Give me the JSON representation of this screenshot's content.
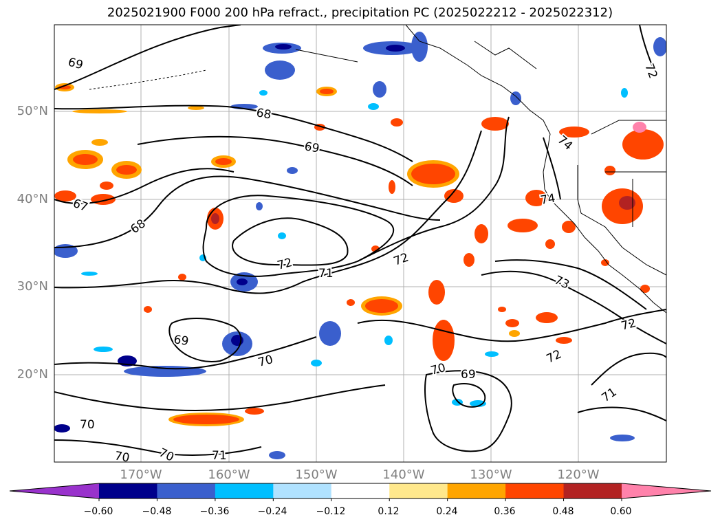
{
  "title": "2025021900 F000 200 hPa refract., precipitation PC (2025022212 - 2025022312)",
  "lat_labels": [
    "50°N",
    "40°N",
    "30°N",
    "20°N"
  ],
  "lon_labels": [
    "170°W",
    "160°W",
    "150°W",
    "140°W",
    "130°W",
    "120°W"
  ],
  "contour_labels": [
    "69",
    "68",
    "69",
    "67",
    "68",
    "72",
    "71",
    "72",
    "73",
    "74",
    "72",
    "72",
    "71",
    "70",
    "69",
    "69",
    "70",
    "70",
    "70",
    "70",
    "71",
    "72",
    "74"
  ],
  "colorbar": {
    "ticks": [
      "−0.60",
      "−0.48",
      "−0.36",
      "−0.24",
      "−0.12",
      "0.12",
      "0.24",
      "0.36",
      "0.48",
      "0.60"
    ],
    "colors": [
      "#9932cc",
      "#00008b",
      "#3a5fcd",
      "#00bfff",
      "#b0e2ff",
      "#ffffff",
      "#ffe88c",
      "#ffa500",
      "#ff4500",
      "#b22222",
      "#ff82ab"
    ]
  },
  "colors": {
    "grid": "#b0b0b0",
    "contour": "#000000",
    "tick_label": "#7f7f7f"
  }
}
